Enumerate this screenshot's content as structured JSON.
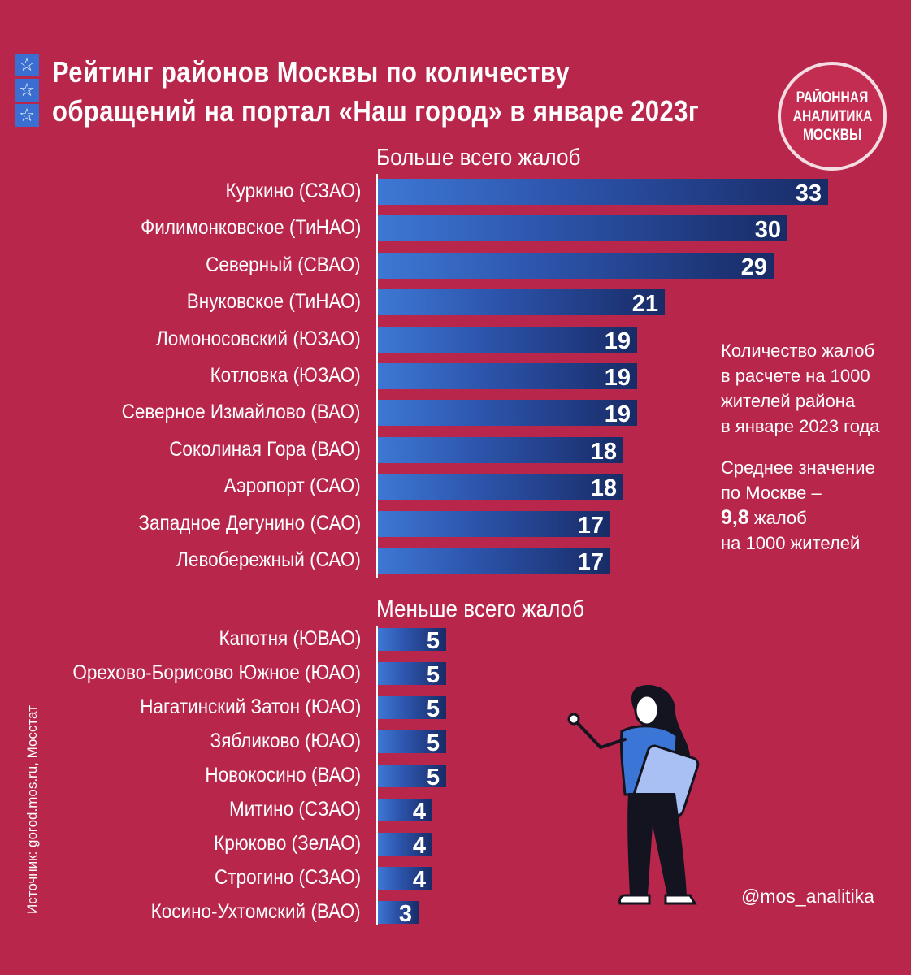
{
  "header": {
    "title_line1": "Рейтинг районов Москвы по количеству",
    "title_line2": "обращений на портал «Наш город» в январе 2023г",
    "star_icon": "star-icon"
  },
  "logo": {
    "line1": "РАЙОННАЯ",
    "line2": "АНАЛИТИКА",
    "line3": "МОСКВЫ"
  },
  "note": {
    "line1": "Количество жалоб",
    "line2": "в расчете на 1000",
    "line3": "жителей района",
    "line4": "в январе 2023 года",
    "avg_line1": "Среднее значение",
    "avg_line2": "по Москве –",
    "avg_value": "9,8",
    "avg_unit": " жалоб",
    "avg_line4": "на 1000 жителей"
  },
  "source": "Источник: gorod.mos.ru, Мосстат",
  "handle": "@mos_analitika",
  "colors": {
    "background": "#b8264b",
    "bar_start": "#3d78d4",
    "bar_end": "#182b66",
    "accent_blue": "#3a6fd1"
  },
  "chart_data": [
    {
      "type": "bar",
      "orientation": "horizontal",
      "title": "Больше всего жалоб",
      "categories": [
        "Куркино (СЗАО)",
        "Филимонковское (ТиНАО)",
        "Северный (СВАО)",
        "Внуковское (ТиНАО)",
        "Ломоносовский (ЮЗАО)",
        "Котловка (ЮЗАО)",
        "Северное Измайлово (ВАО)",
        "Соколиная Гора (ВАО)",
        "Аэропорт (САО)",
        "Западное Дегунино (САО)",
        "Левобережный (САО)"
      ],
      "values": [
        33,
        30,
        29,
        21,
        19,
        19,
        19,
        18,
        18,
        17,
        17
      ],
      "data_labels": [
        "33",
        "30",
        "29",
        "21",
        "19",
        "19",
        "19",
        "18",
        "18",
        "17",
        "17"
      ]
    },
    {
      "type": "bar",
      "orientation": "horizontal",
      "title": "Меньше всего жалоб",
      "categories": [
        "Капотня (ЮВАО)",
        "Орехово-Борисово Южное (ЮАО)",
        "Нагатинский Затон (ЮАО)",
        "Зябликово (ЮАО)",
        "Новокосино (ВАО)",
        "Митино (СЗАО)",
        "Крюково (ЗелАО)",
        "Строгино (СЗАО)",
        "Косино-Ухтомский (ВАО)"
      ],
      "values": [
        5,
        5,
        5,
        5,
        5,
        4,
        4,
        4,
        3
      ],
      "data_labels": [
        "5",
        "5",
        "5",
        "5",
        "5",
        "4",
        "4",
        "4",
        "3"
      ]
    }
  ]
}
